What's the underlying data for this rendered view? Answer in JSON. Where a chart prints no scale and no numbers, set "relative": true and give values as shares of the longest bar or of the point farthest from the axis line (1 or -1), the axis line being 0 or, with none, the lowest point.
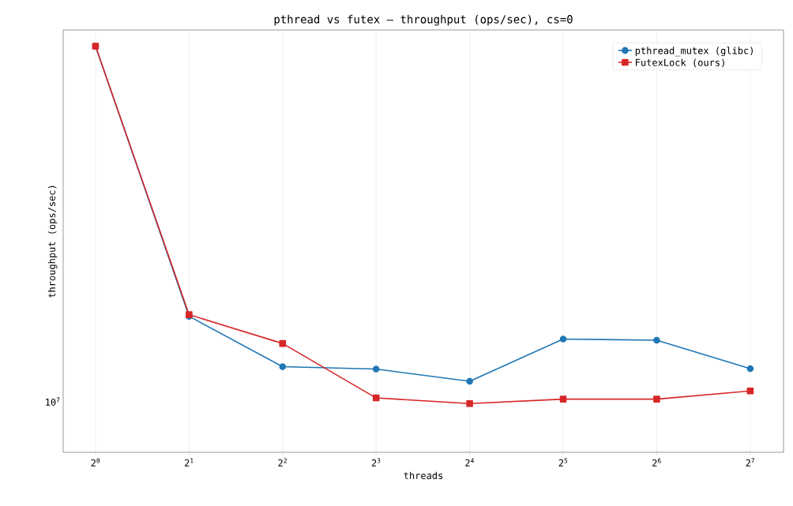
{
  "chart_data": {
    "type": "line",
    "title": "pthread vs futex — throughput (ops/sec), cs=0",
    "xlabel": "threads",
    "ylabel": "throughput (ops/sec)",
    "x": [
      1,
      2,
      4,
      8,
      16,
      32,
      64,
      128
    ],
    "series": [
      {
        "name": "pthread_mutex (glibc)",
        "color": "#1f77b4",
        "marker": "circle",
        "values": [
          1,
          0.335,
          0.211,
          0.205,
          0.175,
          0.279,
          0.276,
          0.206
        ]
      },
      {
        "name": "FutexLock (ours)",
        "color": "#d62728",
        "marker": "square",
        "values": [
          1,
          0.339,
          0.268,
          0.134,
          0.12,
          0.131,
          0.131,
          0.151
        ]
      }
    ],
    "relative": true,
    "annotations": [
      "10$^{7}$"
    ],
    "log": "x",
    "xlim": [
      0.787,
      163.8
    ],
    "xticks": [
      {
        "value": 1,
        "label": "2$^{0}$"
      },
      {
        "value": 2,
        "label": "2$^{1}$"
      },
      {
        "value": 4,
        "label": "2$^{2}$"
      },
      {
        "value": 8,
        "label": "2$^{3}$"
      },
      {
        "value": 16,
        "label": "2$^{4}$"
      },
      {
        "value": 32,
        "label": "2$^{5}$"
      },
      {
        "value": 64,
        "label": "2$^{6}$"
      },
      {
        "value": 128,
        "label": "2$^{7}$"
      }
    ],
    "grid": "x",
    "legend": "top right",
    "line_style": "solid"
  }
}
